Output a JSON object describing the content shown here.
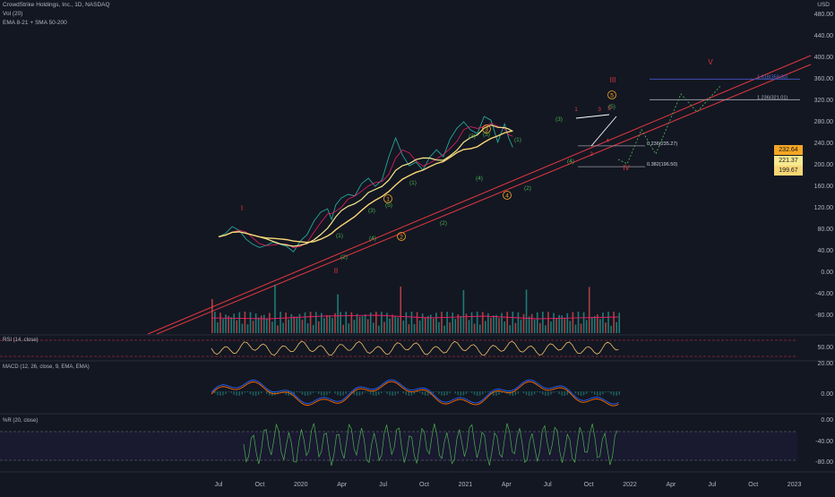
{
  "header": {
    "title": "CrowdStrike Holdings, Inc., 1D, NASDAQ",
    "vol": "Vol (20)",
    "ema": "EMA 8-21 + SMA 50-200",
    "currency": "USD"
  },
  "indicators": {
    "rsi": "RSI (14, close)",
    "macd": "MACD (12, 26, close, 9, EMA, EMA)",
    "wr": "%R (20, close)"
  },
  "price_tags": [
    {
      "value": "232.64",
      "color": "#f5a623"
    },
    {
      "value": "221.37",
      "color": "#f7e98e"
    },
    {
      "value": "199.67",
      "color": "#f9d776"
    }
  ],
  "fib_labels": [
    {
      "text": "1.618(359.30)",
      "price": 359.3
    },
    {
      "text": "1.236(321.01)",
      "price": 321.01
    },
    {
      "text": "0.236(235.27)",
      "price": 235.27
    },
    {
      "text": "0.382(196.50)",
      "price": 196.5
    }
  ],
  "wave_labels": {
    "big": [
      "I",
      "II",
      "III",
      "IV",
      "V"
    ],
    "circled": [
      "1",
      "2",
      "3",
      "4",
      "5"
    ],
    "minor": [
      "(1)",
      "(2)",
      "(3)",
      "(4)",
      "(5)"
    ],
    "sub": [
      "1",
      "2",
      "3",
      "4",
      "5"
    ]
  },
  "chart_data": {
    "type": "line",
    "title": "CrowdStrike Holdings, Inc., 1D, NASDAQ",
    "x_ticks": [
      "Jul",
      "Oct",
      "2020",
      "Apr",
      "Jul",
      "Oct",
      "2021",
      "Apr",
      "Jul",
      "Oct",
      "2022",
      "Apr",
      "Jul",
      "Oct",
      "2023"
    ],
    "price_axis": [
      "480.00",
      "440.00",
      "400.00",
      "360.00",
      "320.00",
      "280.00",
      "240.00",
      "200.00",
      "160.00",
      "120.00",
      "80.00",
      "40.00",
      "0.00",
      "-40.00",
      "-80.00"
    ],
    "rsi_axis": [
      "50.00"
    ],
    "macd_axis": [
      "20.00",
      "0.00"
    ],
    "wr_axis": [
      "0.00",
      "-40.00",
      "-80.00"
    ],
    "price_series": [
      {
        "t": 0.0,
        "v": 66
      },
      {
        "t": 0.5,
        "v": 72
      },
      {
        "t": 1.0,
        "v": 85
      },
      {
        "t": 1.5,
        "v": 78
      },
      {
        "t": 2.0,
        "v": 62
      },
      {
        "t": 2.5,
        "v": 52
      },
      {
        "t": 3.0,
        "v": 46
      },
      {
        "t": 3.5,
        "v": 50
      },
      {
        "t": 4.0,
        "v": 56
      },
      {
        "t": 4.5,
        "v": 52
      },
      {
        "t": 5.0,
        "v": 48
      },
      {
        "t": 5.5,
        "v": 38
      },
      {
        "t": 6.0,
        "v": 58
      },
      {
        "t": 6.5,
        "v": 70
      },
      {
        "t": 7.0,
        "v": 95
      },
      {
        "t": 7.5,
        "v": 112
      },
      {
        "t": 8.0,
        "v": 118
      },
      {
        "t": 8.3,
        "v": 98
      },
      {
        "t": 8.6,
        "v": 125
      },
      {
        "t": 9.0,
        "v": 138
      },
      {
        "t": 9.5,
        "v": 145
      },
      {
        "t": 10.0,
        "v": 142
      },
      {
        "t": 10.5,
        "v": 165
      },
      {
        "t": 11.0,
        "v": 175
      },
      {
        "t": 11.5,
        "v": 160
      },
      {
        "t": 12.0,
        "v": 172
      },
      {
        "t": 12.5,
        "v": 215
      },
      {
        "t": 13.0,
        "v": 250
      },
      {
        "t": 13.5,
        "v": 218
      },
      {
        "t": 14.0,
        "v": 198
      },
      {
        "t": 14.5,
        "v": 205
      },
      {
        "t": 15.0,
        "v": 190
      },
      {
        "t": 15.5,
        "v": 214
      },
      {
        "t": 16.0,
        "v": 228
      },
      {
        "t": 16.5,
        "v": 215
      },
      {
        "t": 17.0,
        "v": 248
      },
      {
        "t": 17.5,
        "v": 268
      },
      {
        "t": 18.0,
        "v": 280
      },
      {
        "t": 18.5,
        "v": 265
      },
      {
        "t": 19.0,
        "v": 258
      },
      {
        "t": 19.5,
        "v": 290
      },
      {
        "t": 20.0,
        "v": 283
      },
      {
        "t": 20.5,
        "v": 242
      },
      {
        "t": 21.0,
        "v": 276
      },
      {
        "t": 21.3,
        "v": 250
      },
      {
        "t": 21.6,
        "v": 232.64
      }
    ]
  }
}
